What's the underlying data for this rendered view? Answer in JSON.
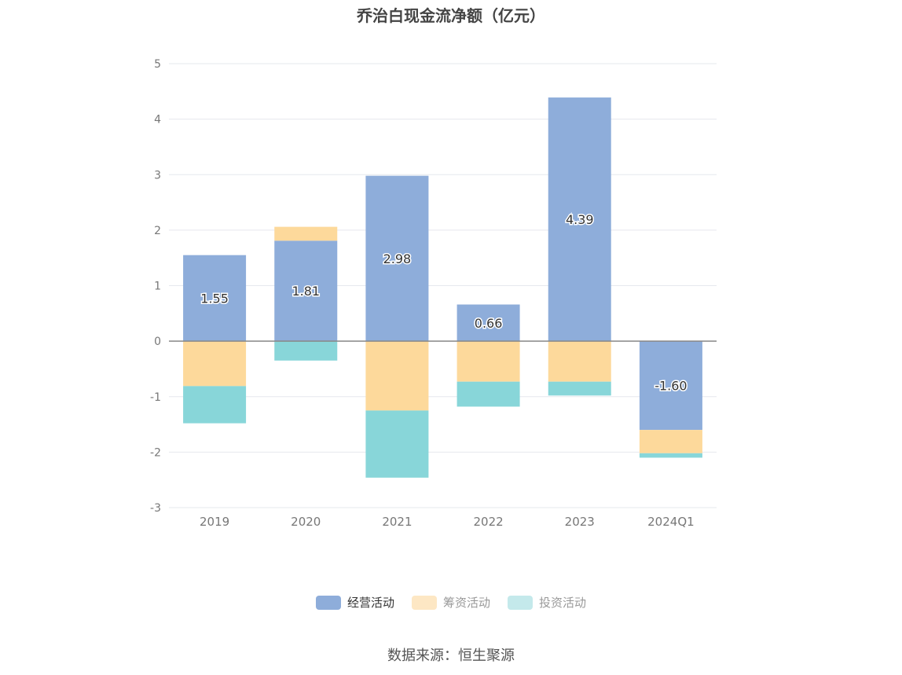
{
  "title": "乔治白现金流净额（亿元）",
  "source": "数据来源：恒生聚源",
  "colors": {
    "operating": "#8EADDA",
    "financing": "#FDD99B",
    "investing": "#88D6D9",
    "grid": "#E6E8EE",
    "axis": "#888888",
    "tick_text": "#777777"
  },
  "legend": [
    {
      "label": "经营活动",
      "color": "#8EADDA",
      "muted": false
    },
    {
      "label": "筹资活动",
      "color": "#FDE7C4",
      "muted": true
    },
    {
      "label": "投资活动",
      "color": "#C4E9EB",
      "muted": true
    }
  ],
  "chart_data": {
    "type": "bar",
    "stacked": true,
    "title": "乔治白现金流净额（亿元）",
    "categories": [
      "2019",
      "2020",
      "2021",
      "2022",
      "2023",
      "2024Q1"
    ],
    "ylim": [
      -3,
      5
    ],
    "yticks": [
      5,
      4,
      3,
      2,
      1,
      0,
      -1,
      -2,
      -3
    ],
    "series": [
      {
        "name": "经营活动",
        "values": [
          1.55,
          1.81,
          2.98,
          0.66,
          4.39,
          -1.6
        ],
        "labels": [
          "1.55",
          "1.81",
          "2.98",
          "0.66",
          "4.39",
          "-1.60"
        ]
      },
      {
        "name": "筹资活动",
        "values": [
          -0.81,
          0.25,
          -1.25,
          -0.73,
          -0.73,
          -0.42
        ]
      },
      {
        "name": "投资活动",
        "values": [
          -0.67,
          -0.35,
          -1.21,
          -0.45,
          -0.25,
          -0.08
        ]
      }
    ],
    "grid": true,
    "legend_position": "bottom"
  }
}
